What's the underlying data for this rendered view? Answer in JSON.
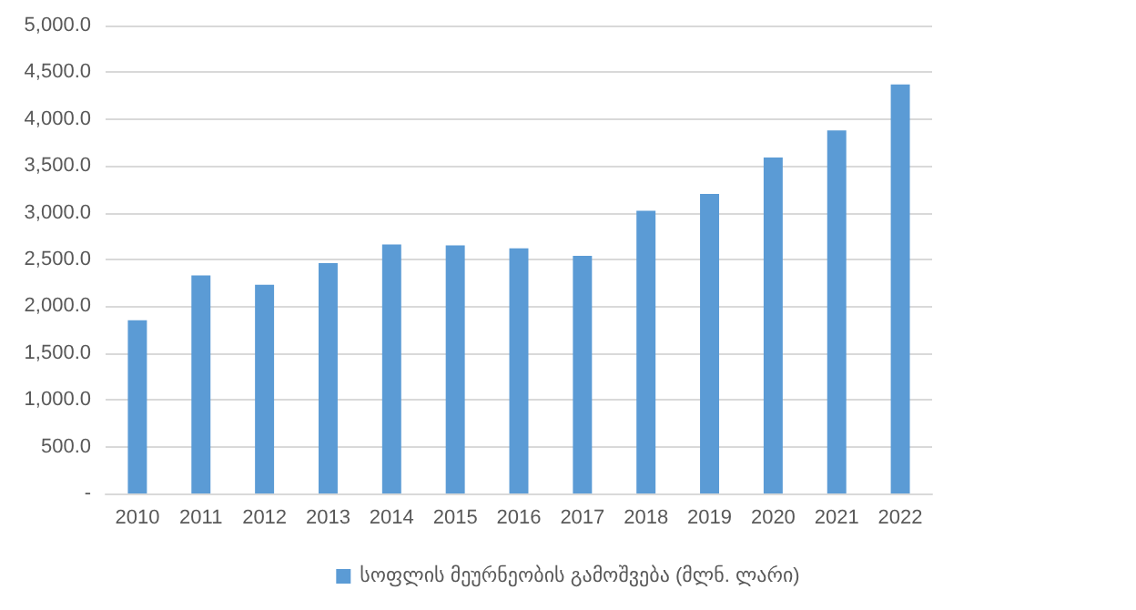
{
  "chart_data": {
    "type": "bar",
    "categories": [
      "2010",
      "2011",
      "2012",
      "2013",
      "2014",
      "2015",
      "2016",
      "2017",
      "2018",
      "2019",
      "2020",
      "2021",
      "2022"
    ],
    "series": [
      {
        "name": "სოფლის მეურნეობის გამოშვება (მლნ. ლარი)",
        "color": "#5b9bd5",
        "values": [
          1850,
          2330,
          2230,
          2460,
          2660,
          2650,
          2620,
          2540,
          3020,
          3200,
          3590,
          3880,
          4370
        ]
      }
    ],
    "ylim": [
      0,
      5000
    ],
    "yticks": [
      {
        "value": 0,
        "label": "-"
      },
      {
        "value": 500,
        "label": "500.0"
      },
      {
        "value": 1000,
        "label": "1,000.0"
      },
      {
        "value": 1500,
        "label": "1,500.0"
      },
      {
        "value": 2000,
        "label": "2,000.0"
      },
      {
        "value": 2500,
        "label": "2,500.0"
      },
      {
        "value": 3000,
        "label": "3,000.0"
      },
      {
        "value": 3500,
        "label": "3,500.0"
      },
      {
        "value": 4000,
        "label": "4,000.0"
      },
      {
        "value": 4500,
        "label": "4,500.0"
      },
      {
        "value": 5000,
        "label": "5,000.0"
      }
    ],
    "grid": "y",
    "legend": "bottom"
  }
}
